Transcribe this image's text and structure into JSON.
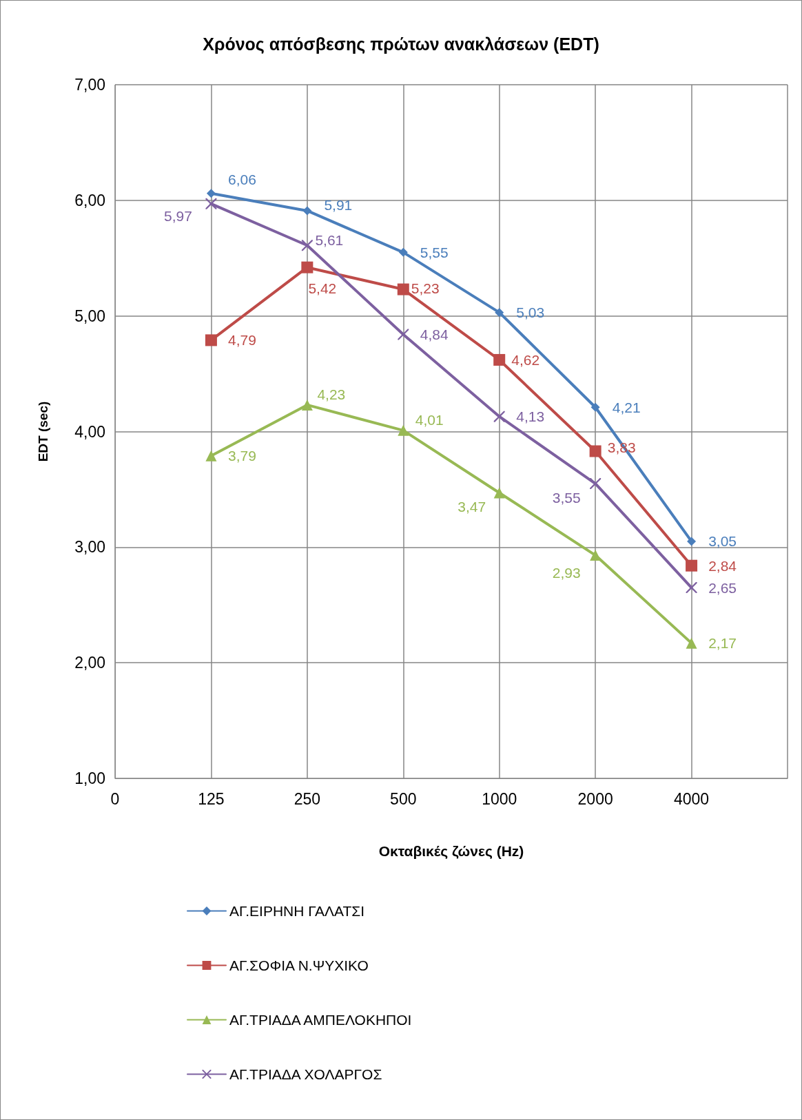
{
  "chart_data": {
    "type": "line",
    "title": "Χρόνος απόσβεσης πρώτων ανακλάσεων (EDT)",
    "xlabel": "Οκταβικές ζώνες (Hz)",
    "ylabel": "EDT (sec)",
    "categories": [
      "0",
      "125",
      "250",
      "500",
      "1000",
      "2000",
      "4000",
      null
    ],
    "series": [
      {
        "name": "ΑΓ.ΕΙΡΗΝΗ ΓΑΛΑΤΣΙ",
        "color": "#4a7ebb",
        "marker": "diamond",
        "values": [
          null,
          6.06,
          5.91,
          5.55,
          5.03,
          4.21,
          3.05,
          null
        ],
        "value_labels": [
          null,
          "6,06",
          "5,91",
          "5,55",
          "5,03",
          "4,21",
          "3,05",
          null
        ]
      },
      {
        "name": "ΑΓ.ΣΟΦΙΑ Ν.ΨΥΧΙΚΟ",
        "color": "#be4b48",
        "marker": "square",
        "values": [
          null,
          4.79,
          5.42,
          5.23,
          4.62,
          3.83,
          2.84,
          null
        ],
        "value_labels": [
          null,
          "4,79",
          "5,42",
          "5,23",
          "4,62",
          "3,83",
          "2,84",
          null
        ]
      },
      {
        "name": "ΑΓ.ΤΡΙΑΔΑ ΑΜΠΕΛΟΚΗΠΟΙ",
        "color": "#98b954",
        "marker": "triangle",
        "values": [
          null,
          3.79,
          4.23,
          4.01,
          3.47,
          2.93,
          2.17,
          null
        ],
        "value_labels": [
          null,
          "3,79",
          "4,23",
          "4,01",
          "3,47",
          "2,93",
          "2,17",
          null
        ]
      },
      {
        "name": "ΑΓ.ΤΡΙΑΔΑ ΧΟΛΑΡΓΟΣ",
        "color": "#7d60a0",
        "marker": "cross",
        "values": [
          null,
          5.97,
          5.61,
          4.84,
          4.13,
          3.55,
          2.65,
          null
        ],
        "value_labels": [
          null,
          "5,97",
          "5,61",
          "4,84",
          "4,13",
          "3,55",
          "2,65",
          null
        ]
      }
    ],
    "ylim": [
      1,
      7
    ],
    "yticks": [
      {
        "value": 1,
        "label": "1,00"
      },
      {
        "value": 2,
        "label": "2,00"
      },
      {
        "value": 3,
        "label": "3,00"
      },
      {
        "value": 4,
        "label": "4,00"
      },
      {
        "value": 5,
        "label": "5,00"
      },
      {
        "value": 6,
        "label": "6,00"
      },
      {
        "value": 7,
        "label": "7,00"
      }
    ],
    "grid": true,
    "legend": "bottom",
    "line_style": "solid"
  }
}
